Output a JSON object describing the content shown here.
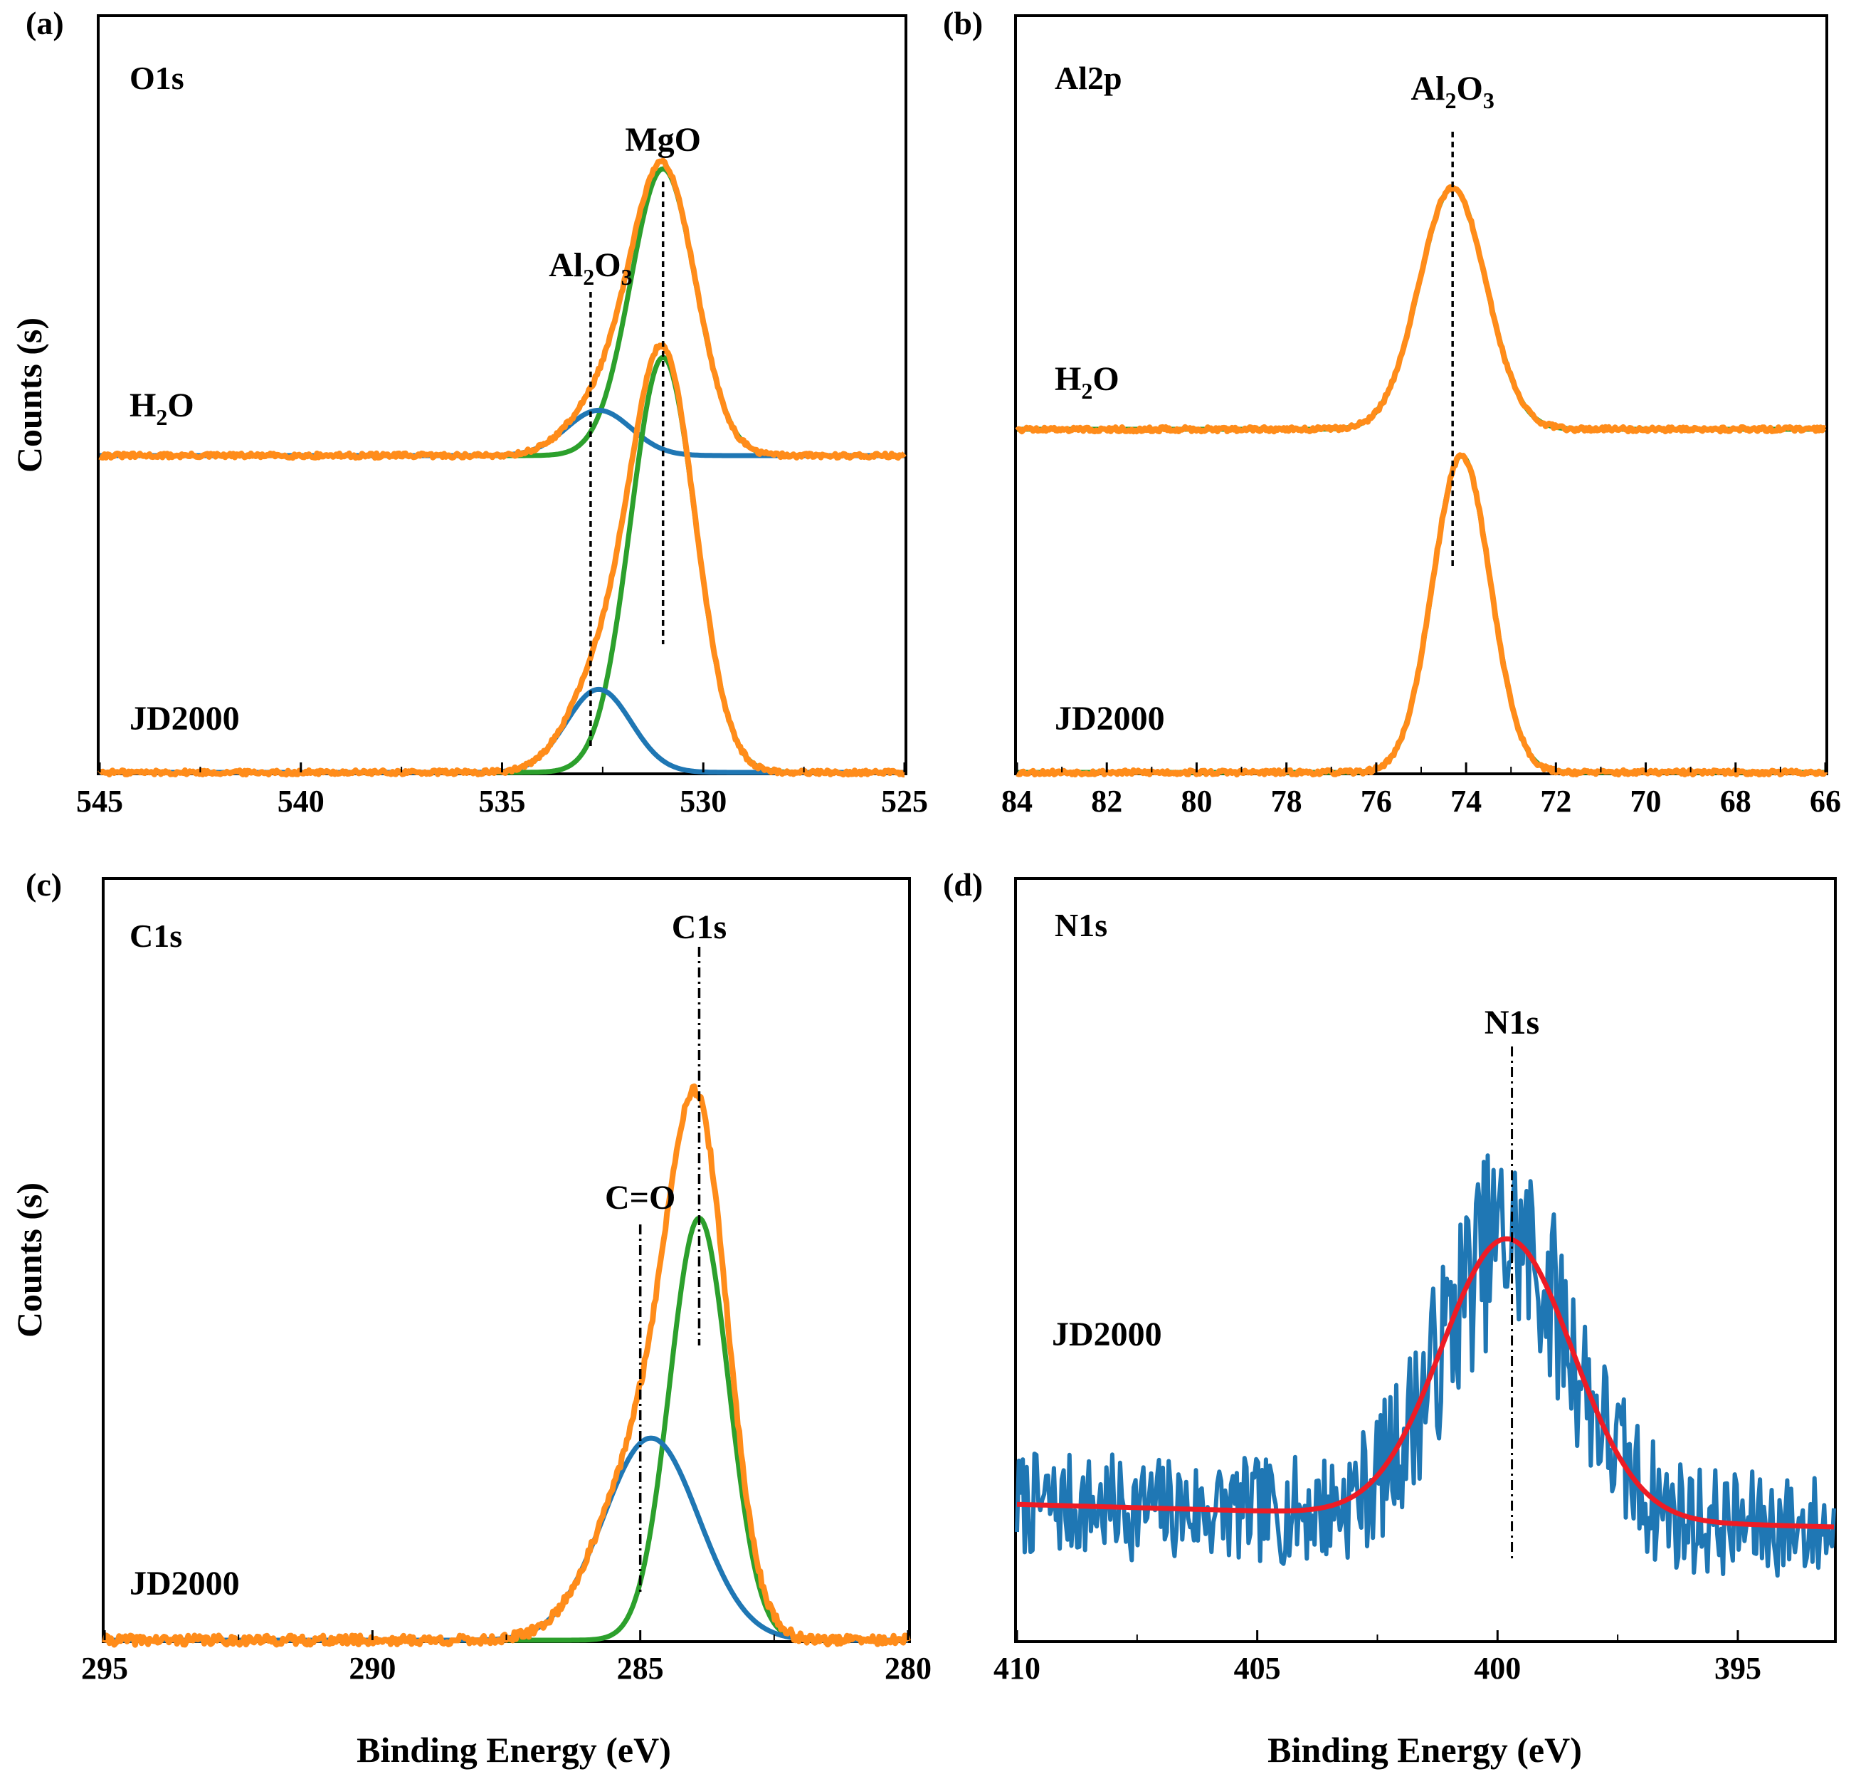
{
  "figure": {
    "ylabel": "Counts (s)",
    "xlabel": "Binding Energy (eV)"
  },
  "chart_data": [
    {
      "panel": "(a)",
      "type": "line",
      "region": "O1s",
      "xlabel": "",
      "ylabel": "Counts (s)",
      "xlim": [
        545,
        525
      ],
      "x_reversed": true,
      "xticks": [
        545,
        540,
        535,
        530,
        525
      ],
      "series_colors": {
        "envelope": "#ff8c1a",
        "component1": "#2ca02c",
        "component2": "#1f77b4"
      },
      "traces": [
        {
          "sample": "H2O",
          "label": {
            "main": "H",
            "sub": "2",
            "tail": "O"
          },
          "offset": 0.5,
          "envelope_peak_height": 0.38,
          "components": [
            {
              "name": "MgO",
              "center": 531.0,
              "fwhm": 1.9,
              "height": 0.38,
              "color": "#2ca02c"
            },
            {
              "name": "Al2O3",
              "center": 532.6,
              "fwhm": 1.9,
              "height": 0.06,
              "color": "#1f77b4"
            }
          ]
        },
        {
          "sample": "JD2000",
          "label": {
            "main": "JD2000",
            "sub": "",
            "tail": ""
          },
          "offset": 0.0,
          "envelope_peak_height": 0.55,
          "components": [
            {
              "name": "MgO",
              "center": 531.0,
              "fwhm": 1.9,
              "height": 0.55,
              "color": "#2ca02c"
            },
            {
              "name": "Al2O3",
              "center": 532.6,
              "fwhm": 1.9,
              "height": 0.11,
              "color": "#1f77b4"
            }
          ]
        }
      ],
      "peak_markers": [
        {
          "name": "MgO",
          "label": {
            "main": "MgO",
            "sub": "",
            "tail": "",
            "sub2": "",
            "tail2": ""
          },
          "x": 531.0
        },
        {
          "name": "Al2O3",
          "label": {
            "main": "Al",
            "sub": "2",
            "tail": "O",
            "sub2": "3",
            "tail2": ""
          },
          "x": 532.8
        }
      ]
    },
    {
      "panel": "(b)",
      "type": "line",
      "region": "Al2p",
      "xlabel": "",
      "ylabel": "",
      "xlim": [
        84,
        66
      ],
      "x_reversed": true,
      "xticks": [
        84,
        82,
        80,
        78,
        76,
        74,
        72,
        70,
        68,
        66
      ],
      "series_colors": {
        "envelope": "#ff8c1a",
        "component1": "#2ca02c"
      },
      "traces": [
        {
          "sample": "H2O",
          "label": {
            "main": "H",
            "sub": "2",
            "tail": "O"
          },
          "offset": 0.52,
          "envelope_peak_height": 0.32,
          "components": [
            {
              "name": "Al2O3",
              "center": 74.3,
              "fwhm": 1.75,
              "height": 0.32,
              "color": "#2ca02c"
            }
          ]
        },
        {
          "sample": "JD2000",
          "label": {
            "main": "JD2000",
            "sub": "",
            "tail": ""
          },
          "offset": 0.0,
          "envelope_peak_height": 0.42,
          "components": [
            {
              "name": "Al2O3",
              "center": 74.1,
              "fwhm": 1.5,
              "height": 0.42,
              "color": "#2ca02c"
            }
          ]
        }
      ],
      "peak_markers": [
        {
          "name": "Al2O3",
          "label": {
            "main": "Al",
            "sub": "2",
            "tail": "O",
            "sub2": "3",
            "tail2": ""
          },
          "x": 74.3
        }
      ]
    },
    {
      "panel": "(c)",
      "type": "line",
      "region": "C1s",
      "xlabel": "Binding Energy (eV)",
      "ylabel": "Counts (s)",
      "xlim": [
        295,
        280
      ],
      "x_reversed": true,
      "xticks": [
        295,
        290,
        285,
        280
      ],
      "series_colors": {
        "envelope": "#ff8c1a",
        "component1": "#2ca02c",
        "component2": "#1f77b4"
      },
      "traces": [
        {
          "sample": "JD2000",
          "label": {
            "main": "JD2000",
            "sub": "",
            "tail": ""
          },
          "offset": 0.0,
          "envelope_peak_height": 1.0,
          "components": [
            {
              "name": "C1s",
              "center": 283.9,
              "fwhm": 1.3,
              "height": 0.71,
              "color": "#2ca02c"
            },
            {
              "name": "C=O",
              "center": 284.8,
              "fwhm": 2.1,
              "height": 0.34,
              "color": "#1f77b4"
            }
          ]
        }
      ],
      "peak_markers": [
        {
          "name": "C1s",
          "label": {
            "main": "C1s",
            "sub": "",
            "tail": "",
            "sub2": "",
            "tail2": ""
          },
          "x": 283.9
        },
        {
          "name": "C=O",
          "label": {
            "main": "C=O",
            "sub": "",
            "tail": "",
            "sub2": "",
            "tail2": ""
          },
          "x": 285.0
        }
      ]
    },
    {
      "panel": "(d)",
      "type": "line",
      "region": "N1s",
      "xlabel": "Binding Energy (eV)",
      "ylabel": "",
      "xlim": [
        410,
        393
      ],
      "x_reversed": true,
      "xticks": [
        410,
        405,
        400,
        395
      ],
      "series_colors": {
        "raw": "#1f77b4",
        "fit": "#ee1c25"
      },
      "traces": [
        {
          "sample": "JD2000",
          "label": {
            "main": "JD2000",
            "sub": "",
            "tail": ""
          },
          "baseline_high_energy": 0.18,
          "baseline_low_energy": 0.15,
          "fit_peak_center": 399.8,
          "fit_peak_fwhm": 3.2,
          "fit_peak_height": 0.37,
          "noise_amplitude": 0.07
        }
      ],
      "peak_markers": [
        {
          "name": "N1s",
          "label": {
            "main": "N1s",
            "sub": "",
            "tail": "",
            "sub2": "",
            "tail2": ""
          },
          "x": 399.7
        }
      ]
    }
  ]
}
